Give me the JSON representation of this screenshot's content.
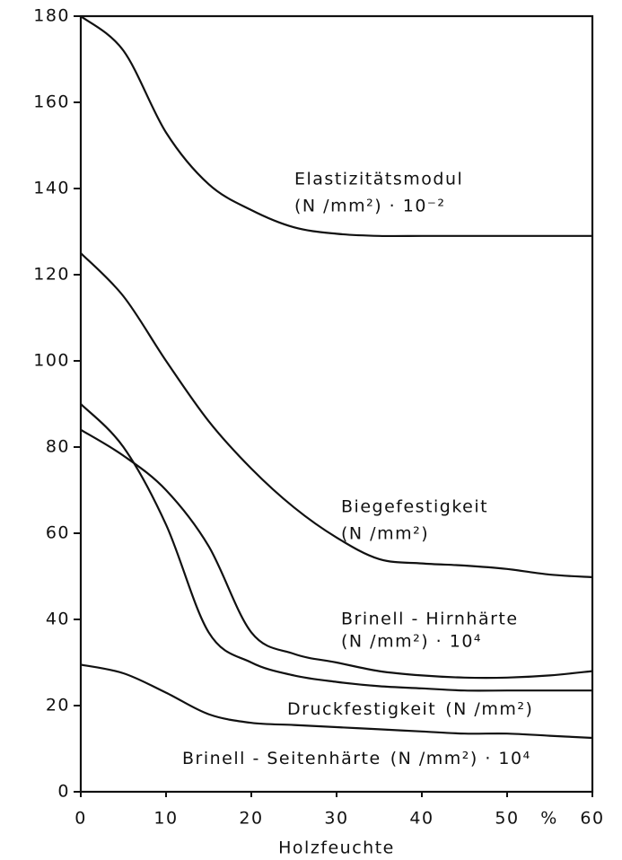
{
  "chart_data": {
    "type": "line",
    "xlabel": "Holzfeuchte",
    "x_unit": "%",
    "x": [
      0,
      5,
      10,
      15,
      20,
      25,
      30,
      35,
      40,
      45,
      50,
      55,
      60
    ],
    "xlim": [
      0,
      60
    ],
    "xticks": [
      0,
      10,
      20,
      30,
      40,
      50,
      60
    ],
    "ylim": [
      0,
      180
    ],
    "yticks": [
      0,
      20,
      40,
      60,
      80,
      100,
      120,
      140,
      160,
      180
    ],
    "series": [
      {
        "name": "Elastizitätsmodul",
        "unit": "(N /mm²) · 10⁻²",
        "color": "#111111",
        "values": [
          180,
          172,
          153,
          141,
          135,
          131,
          129.5,
          129,
          129,
          129,
          129,
          129,
          129
        ]
      },
      {
        "name": "Biegefestigkeit",
        "unit": "(N /mm²)",
        "color": "#111111",
        "values": [
          125,
          115,
          100,
          86,
          75,
          66,
          59,
          54,
          53,
          52.5,
          51.7,
          50.4,
          49.8
        ]
      },
      {
        "name": "Brinell - Hirnhärte",
        "unit": "(N /mm²) · 10⁴",
        "color": "#111111",
        "values": [
          84,
          78,
          70,
          57,
          37,
          32,
          30,
          28,
          27,
          26.5,
          26.5,
          27,
          28
        ]
      },
      {
        "name": "Druckfestigkeit",
        "unit": "(N /mm²)",
        "color": "#111111",
        "values": [
          90,
          80,
          62,
          37,
          30,
          27,
          25.5,
          24.5,
          24,
          23.5,
          23.5,
          23.5,
          23.5
        ]
      },
      {
        "name": "Brinell - Seitenhärte",
        "unit": "(N /mm²) · 10⁴",
        "color": "#111111",
        "values": [
          29.5,
          27.5,
          23,
          18,
          16,
          15.5,
          15,
          14.5,
          14,
          13.5,
          13.5,
          13,
          12.5
        ]
      }
    ]
  }
}
